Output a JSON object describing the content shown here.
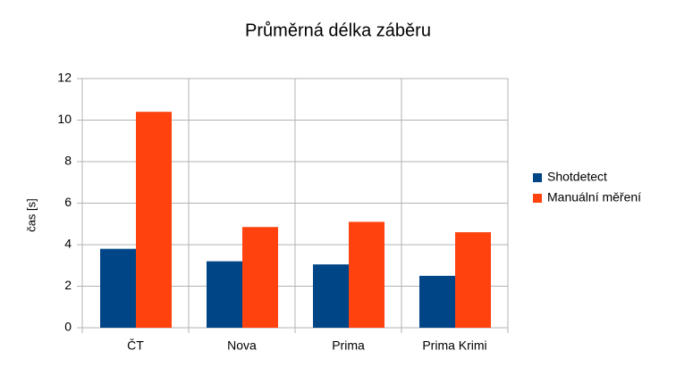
{
  "chart_data": {
    "type": "bar",
    "title": "Průměrná délka záběru",
    "y_label": "čas [s]",
    "categories": [
      "ČT",
      "Nova",
      "Prima",
      "Prima Krimi"
    ],
    "series": [
      {
        "name": "Shotdetect",
        "color": "#004586",
        "values": [
          3.8,
          3.2,
          3.05,
          2.5
        ]
      },
      {
        "name": "Manuální měření",
        "color": "#ff420e",
        "values": [
          10.4,
          4.85,
          5.1,
          4.6
        ]
      }
    ],
    "ylim": [
      0,
      12
    ],
    "yticks": [
      0,
      2,
      4,
      6,
      8,
      10,
      12
    ],
    "grid": true,
    "legend": "right"
  }
}
